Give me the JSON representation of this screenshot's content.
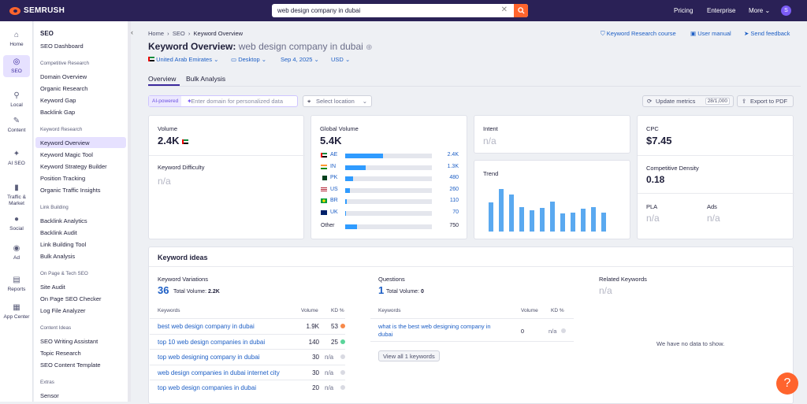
{
  "topbar": {
    "logo": "SEMRUSH",
    "search_value": "web design company in dubai",
    "pricing": "Pricing",
    "enterprise": "Enterprise",
    "more": "More",
    "avatar": "S"
  },
  "rail": [
    {
      "label": "Home",
      "icon": "home-icon",
      "glyph": "⌂"
    },
    {
      "label": "SEO",
      "icon": "seo-icon",
      "glyph": "◎",
      "active": true
    },
    {
      "label": "Local",
      "icon": "local-pin-icon",
      "glyph": "⚲"
    },
    {
      "label": "Content",
      "icon": "content-pen-icon",
      "glyph": "✎"
    },
    {
      "label": "AI SEO",
      "icon": "ai-sparkle-icon",
      "glyph": "✦"
    },
    {
      "label": "Traffic & Market",
      "icon": "traffic-chart-icon",
      "glyph": "▮"
    },
    {
      "label": "Social",
      "icon": "social-bubble-icon",
      "glyph": "●"
    },
    {
      "label": "Ad",
      "icon": "ad-target-icon",
      "glyph": "◉"
    },
    {
      "label": "Reports",
      "icon": "reports-icon",
      "glyph": "▤"
    },
    {
      "label": "App Center",
      "icon": "app-center-icon",
      "glyph": "▦"
    }
  ],
  "menu": {
    "title": "SEO",
    "dashboard": "SEO Dashboard",
    "h1": "Competitive Research",
    "comp": [
      "Domain Overview",
      "Organic Research",
      "Keyword Gap",
      "Backlink Gap"
    ],
    "h2": "Keyword Research",
    "kw": [
      "Keyword Overview",
      "Keyword Magic Tool",
      "Keyword Strategy Builder",
      "Position Tracking",
      "Organic Traffic Insights"
    ],
    "h3": "Link Building",
    "link": [
      "Backlink Analytics",
      "Backlink Audit",
      "Link Building Tool",
      "Bulk Analysis"
    ],
    "h4": "On Page & Tech SEO",
    "onpage": [
      "Site Audit",
      "On Page SEO Checker",
      "Log File Analyzer"
    ],
    "h5": "Content Ideas",
    "content": [
      "SEO Writing Assistant",
      "Topic Research",
      "SEO Content Template"
    ],
    "h6": "Extras",
    "extras": [
      "Sensor"
    ]
  },
  "crumb": {
    "home": "Home",
    "seo": "SEO",
    "current": "Keyword Overview"
  },
  "links": {
    "course": "Keyword Research course",
    "manual": "User manual",
    "feedback": "Send feedback"
  },
  "title": {
    "label": "Keyword Overview:",
    "keyword": "web design company in dubai"
  },
  "filters": {
    "country": "United Arab Emirates",
    "device": "Desktop",
    "date": "Sep 4, 2025",
    "currency": "USD"
  },
  "tabs": {
    "overview": "Overview",
    "bulk": "Bulk Analysis"
  },
  "ai": {
    "tag": "AI-powered",
    "placeholder": "Enter domain for personalized data",
    "location": "Select location"
  },
  "buttons": {
    "update": "Update metrics",
    "update_count": "28/1,000",
    "export": "Export to PDF"
  },
  "volume": {
    "label": "Volume",
    "value": "2.4K",
    "kd_label": "Keyword Difficulty",
    "kd_value": "n/a"
  },
  "global": {
    "label": "Global Volume",
    "value": "5.4K",
    "rows": [
      {
        "cc": "AE",
        "val": "2.4K",
        "frac": 0.44
      },
      {
        "cc": "IN",
        "val": "1.3K",
        "frac": 0.24
      },
      {
        "cc": "PK",
        "val": "480",
        "frac": 0.09
      },
      {
        "cc": "US",
        "val": "260",
        "frac": 0.05
      },
      {
        "cc": "BR",
        "val": "110",
        "frac": 0.02
      },
      {
        "cc": "UK",
        "val": "70",
        "frac": 0.013
      }
    ],
    "other_label": "Other",
    "other_val": "750",
    "other_frac": 0.14
  },
  "intent": {
    "label": "Intent",
    "value": "n/a"
  },
  "trend": {
    "label": "Trend",
    "values": [
      0.62,
      0.9,
      0.78,
      0.52,
      0.45,
      0.5,
      0.64,
      0.38,
      0.4,
      0.49,
      0.52,
      0.4
    ]
  },
  "cpc": {
    "label": "CPC",
    "value": "$7.45",
    "cd_label": "Competitive Density",
    "cd_value": "0.18",
    "pla_label": "PLA",
    "pla_value": "n/a",
    "ads_label": "Ads",
    "ads_value": "n/a"
  },
  "ideas": {
    "title": "Keyword ideas",
    "variations": {
      "label": "Keyword Variations",
      "count": "36",
      "total": "Total Volume:",
      "total_val": "2.2K",
      "h_kw": "Keywords",
      "h_vol": "Volume",
      "h_kd": "KD %",
      "rows": [
        {
          "kw": "best web design company in dubai",
          "vol": "1.9K",
          "kd": "53",
          "color": "#f7894a"
        },
        {
          "kw": "top 10 web design companies in dubai",
          "vol": "140",
          "kd": "25",
          "color": "#5bd49a"
        },
        {
          "kw": "top web designing company in dubai",
          "vol": "30",
          "kd": "n/a",
          "color": "#d9dae2"
        },
        {
          "kw": "web design companies in dubai internet city",
          "vol": "30",
          "kd": "n/a",
          "color": "#d9dae2"
        },
        {
          "kw": "top web design companies in dubai",
          "vol": "20",
          "kd": "n/a",
          "color": "#d9dae2"
        }
      ]
    },
    "questions": {
      "label": "Questions",
      "count": "1",
      "total": "Total Volume:",
      "total_val": "0",
      "h_kw": "Keywords",
      "h_vol": "Volume",
      "h_kd": "KD %",
      "rows": [
        {
          "kw": "what is the best web designing company in dubai",
          "vol": "0",
          "kd": "n/a",
          "color": "#d9dae2"
        }
      ],
      "view_all": "View all 1 keywords"
    },
    "related": {
      "label": "Related Keywords",
      "value": "n/a",
      "empty": "We have no data to show."
    }
  },
  "help": "?"
}
